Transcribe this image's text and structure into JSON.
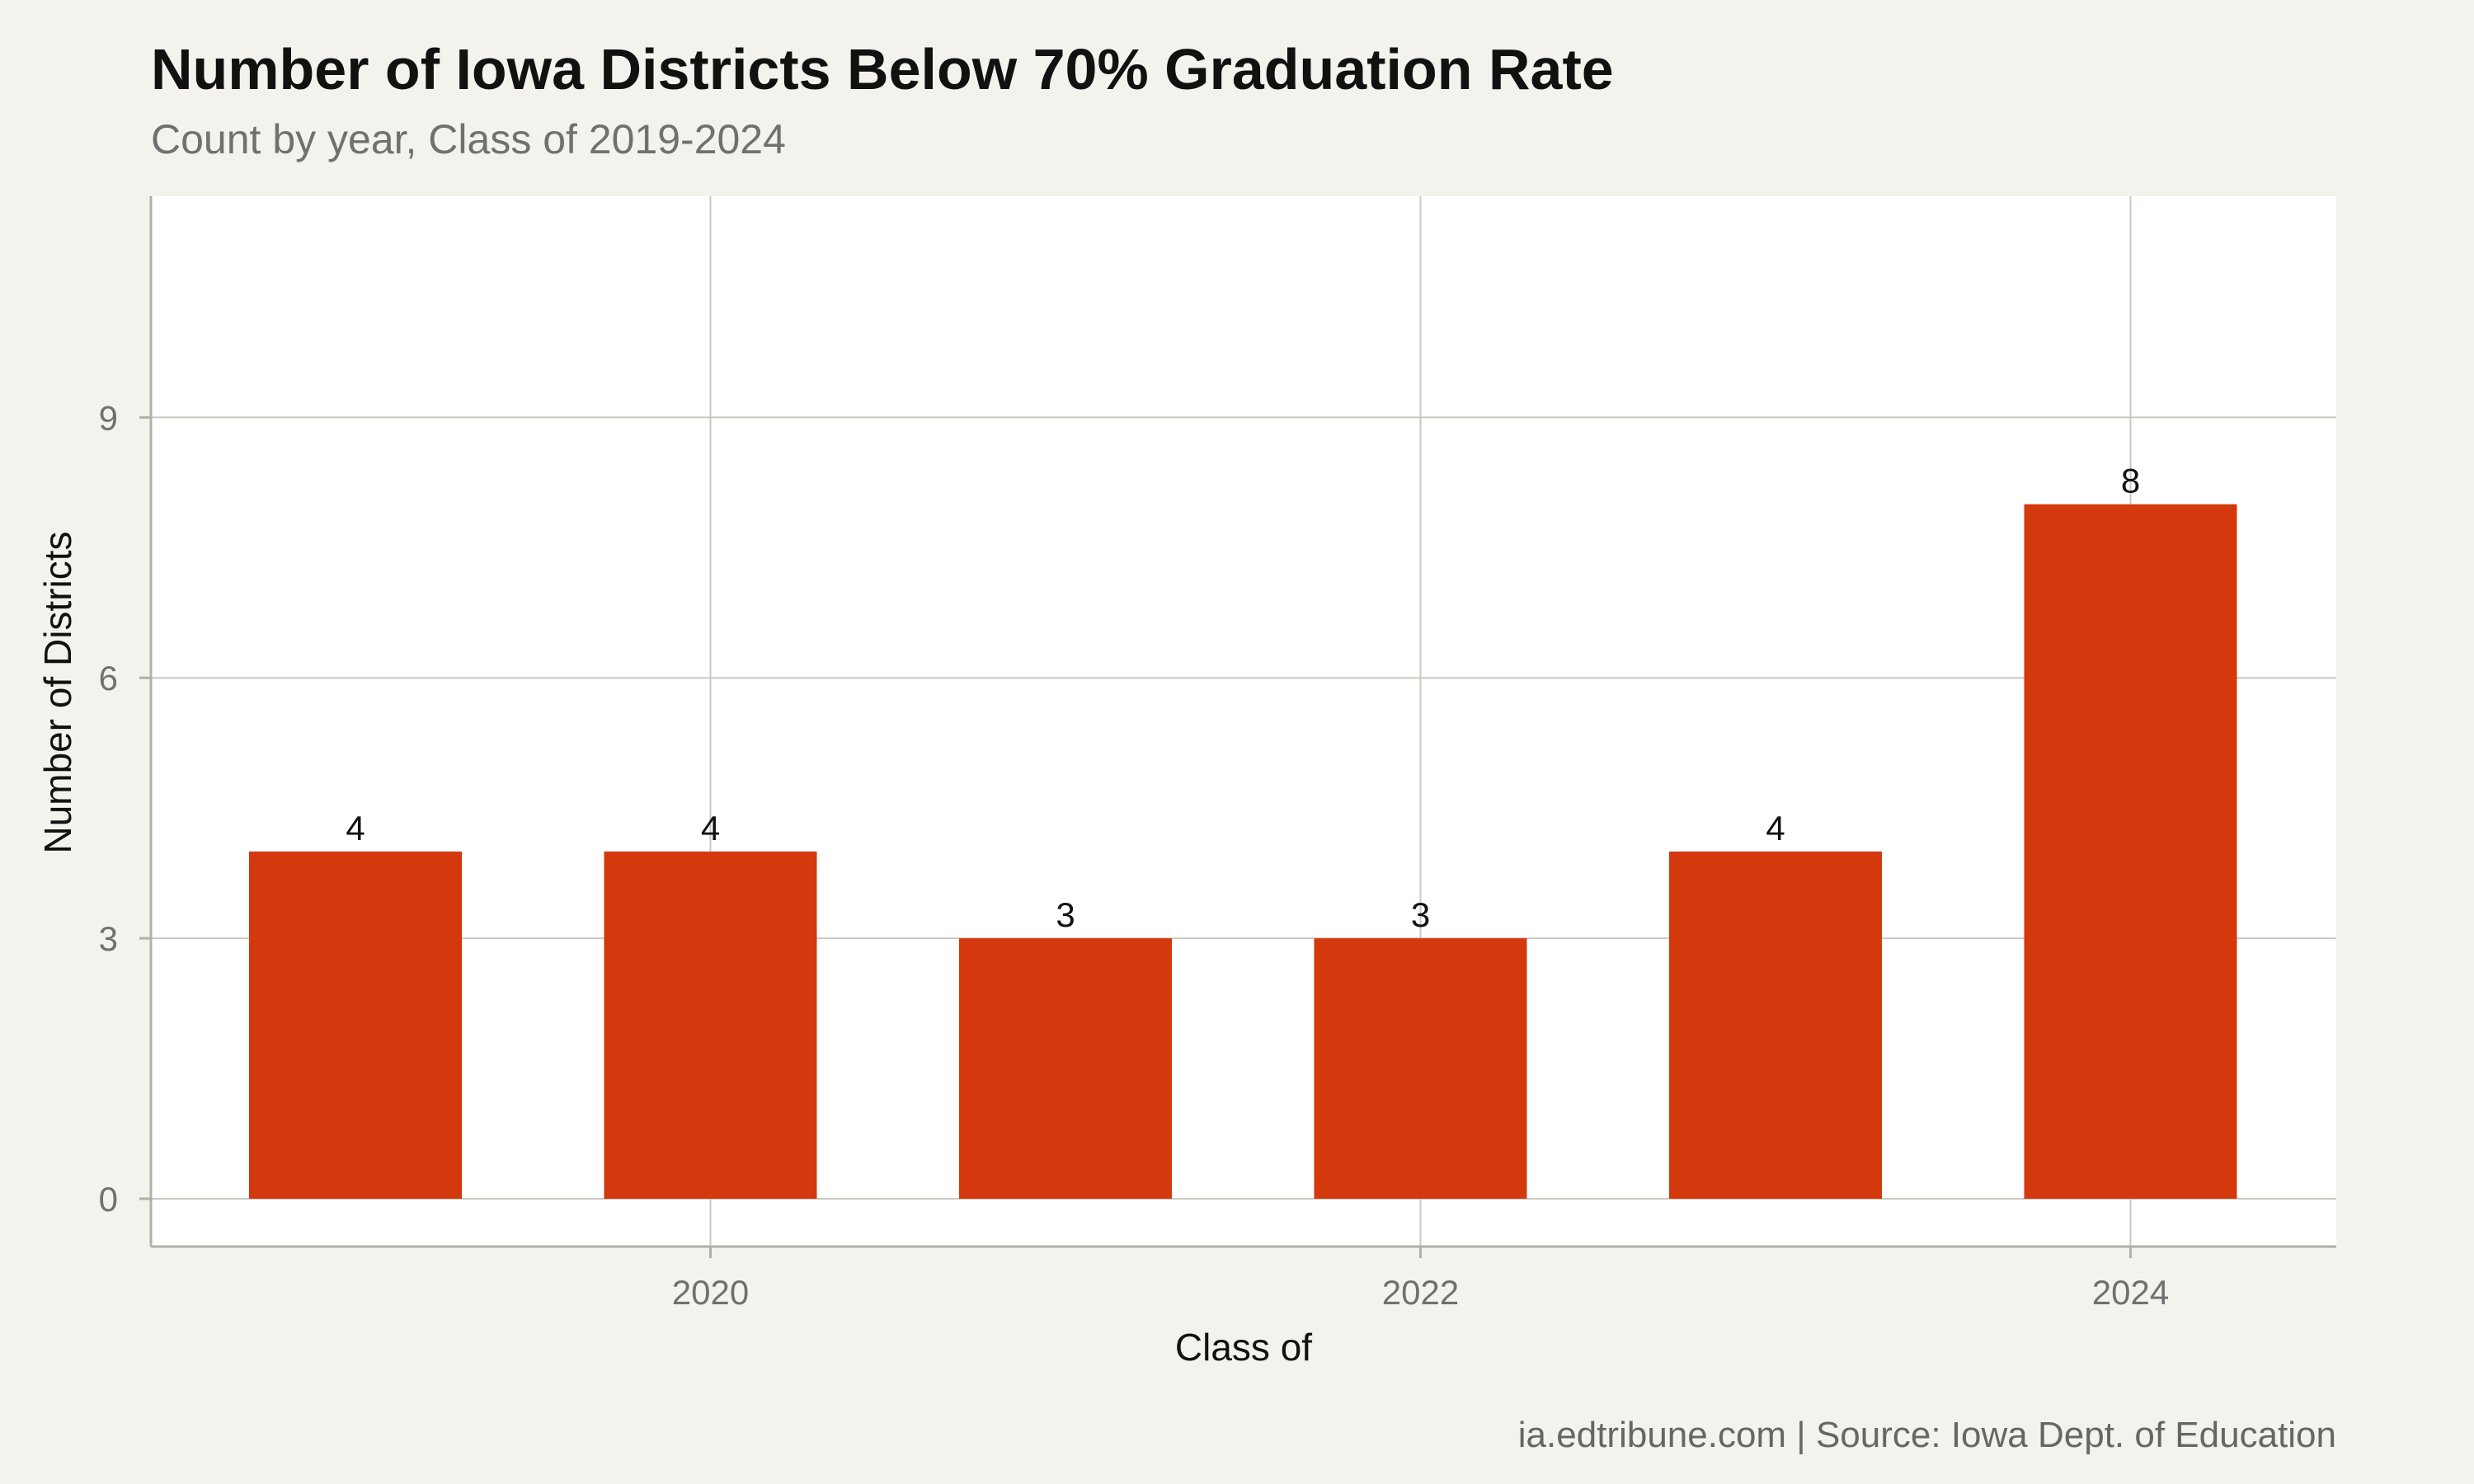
{
  "header": {
    "title": "Number of Iowa Districts Below 70% Graduation Rate",
    "subtitle": "Count by year, Class of 2019-2024"
  },
  "footer": {
    "caption": "ia.edtribune.com | Source: Iowa Dept. of Education"
  },
  "colors": {
    "bar": "#d4380d",
    "panel": "#ffffff",
    "background": "#f4f2ed",
    "grid": "#c8c8c0"
  },
  "chart_data": {
    "type": "bar",
    "title": "Number of Iowa Districts Below 70% Graduation Rate",
    "subtitle": "Count by year, Class of 2019-2024",
    "xlabel": "Class of",
    "ylabel": "Number of Districts",
    "categories": [
      2019,
      2020,
      2021,
      2022,
      2023,
      2024
    ],
    "values": [
      4,
      4,
      3,
      3,
      4,
      8
    ],
    "data_labels": [
      "4",
      "4",
      "3",
      "3",
      "4",
      "8"
    ],
    "x_ticks": [
      2020,
      2022,
      2024
    ],
    "x_tick_labels": [
      "2020",
      "2022",
      "2024"
    ],
    "y_ticks": [
      0,
      3,
      6,
      9
    ],
    "y_tick_labels": [
      "0",
      "3",
      "6",
      "9"
    ],
    "ylim": [
      0,
      11.4
    ],
    "grid": true,
    "legend": "none"
  }
}
